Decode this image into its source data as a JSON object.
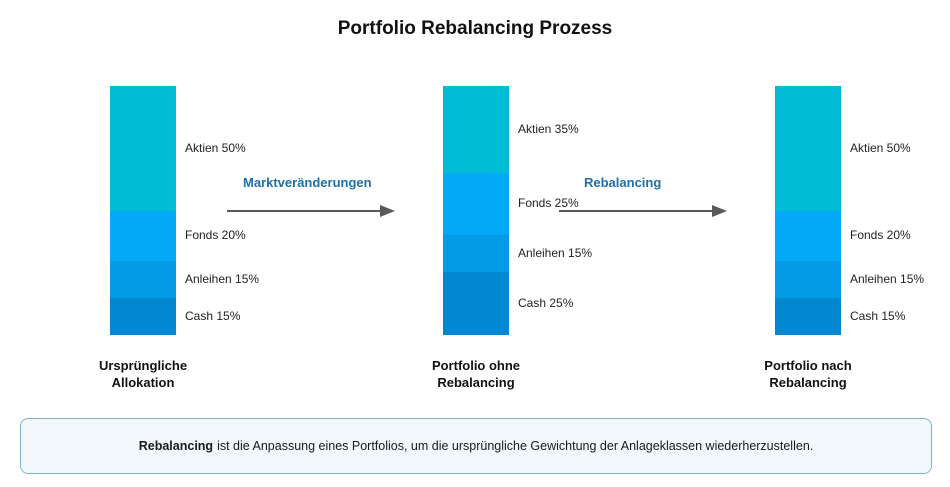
{
  "title": "Portfolio Rebalancing Prozess",
  "colors": {
    "aktien": "#00bcd4",
    "fonds": "#03a9f4",
    "anleihen": "#039be5",
    "cash": "#0288d1",
    "arrow": "#5a5a5a",
    "arrow_label": "#1f6fa8",
    "info_border": "#7fb3c8",
    "info_bg": "#f1f8fb"
  },
  "portfolios": [
    {
      "caption_line1": "Ursprüngliche",
      "caption_line2": "Allokation",
      "segments": [
        {
          "label": "Aktien 50%",
          "share": 50,
          "color_key": "aktien"
        },
        {
          "label": "Fonds 20%",
          "share": 20,
          "color_key": "fonds"
        },
        {
          "label": "Anleihen 15%",
          "share": 15,
          "color_key": "anleihen"
        },
        {
          "label": "Cash 15%",
          "share": 15,
          "color_key": "cash"
        }
      ]
    },
    {
      "caption_line1": "Portfolio ohne",
      "caption_line2": "Rebalancing",
      "segments": [
        {
          "label": "Aktien 35%",
          "share": 35,
          "color_key": "aktien"
        },
        {
          "label": "Fonds 25%",
          "share": 25,
          "color_key": "fonds"
        },
        {
          "label": "Anleihen 15%",
          "share": 15,
          "color_key": "anleihen"
        },
        {
          "label": "Cash 25%",
          "share": 25,
          "color_key": "cash"
        }
      ]
    },
    {
      "caption_line1": "Portfolio nach",
      "caption_line2": "Rebalancing",
      "segments": [
        {
          "label": "Aktien 50%",
          "share": 50,
          "color_key": "aktien"
        },
        {
          "label": "Fonds 20%",
          "share": 20,
          "color_key": "fonds"
        },
        {
          "label": "Anleihen 15%",
          "share": 15,
          "color_key": "anleihen"
        },
        {
          "label": "Cash 15%",
          "share": 15,
          "color_key": "cash"
        }
      ]
    }
  ],
  "arrows": [
    {
      "label": "Marktveränderungen"
    },
    {
      "label": "Rebalancing"
    }
  ],
  "info": {
    "bold": "Rebalancing",
    "text": "ist die Anpassung eines Portfolios, um die ursprüngliche Gewichtung der Anlageklassen wiederherzustellen."
  }
}
